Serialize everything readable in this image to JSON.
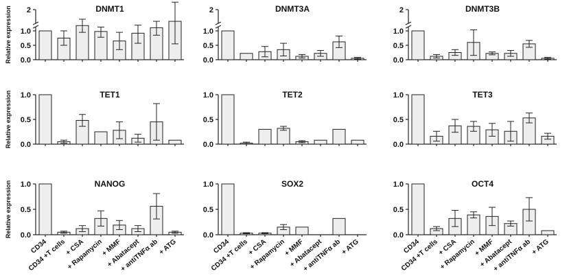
{
  "figure": {
    "ylabel": "Relative expression",
    "categories": [
      "CD34",
      "CD34 +T cells",
      "+ CSA",
      "+ Rapamycin",
      "+ MMF",
      "+ Abatacept",
      "+ antiTNFα ab",
      "+ ATG"
    ]
  },
  "chart_data": [
    {
      "type": "bar",
      "title": "DNMT1",
      "ylabel": "Relative expression",
      "ylim": [
        0,
        2
      ],
      "broken_axis": true,
      "yticks": [
        "0.0",
        "0.5",
        "1.0",
        "2"
      ],
      "values": [
        1.0,
        0.75,
        1.25,
        0.98,
        0.65,
        0.92,
        1.15,
        1.45
      ],
      "errors": [
        0,
        0.25,
        0.3,
        0.2,
        0.3,
        0.35,
        0.3,
        0.9
      ]
    },
    {
      "type": "bar",
      "title": "DNMT3A",
      "ylabel": "",
      "ylim": [
        0,
        2
      ],
      "broken_axis": true,
      "yticks": [
        "0.0",
        "0.5",
        "1.0",
        "2"
      ],
      "values": [
        1.0,
        0.22,
        0.28,
        0.35,
        0.12,
        0.22,
        0.62,
        0.05
      ],
      "errors": [
        0,
        0,
        0.18,
        0.22,
        0.06,
        0.1,
        0.2,
        0.03
      ]
    },
    {
      "type": "bar",
      "title": "DNMT3B",
      "ylabel": "",
      "ylim": [
        0,
        2
      ],
      "broken_axis": true,
      "yticks": [
        "0.0",
        "0.5",
        "1.0",
        "2"
      ],
      "values": [
        1.0,
        0.12,
        0.25,
        0.6,
        0.22,
        0.22,
        0.55,
        0.05
      ],
      "errors": [
        0,
        0.06,
        0.1,
        0.45,
        0.05,
        0.1,
        0.12,
        0.03
      ]
    },
    {
      "type": "bar",
      "title": "TET1",
      "ylabel": "Relative expression",
      "ylim": [
        0,
        1.0
      ],
      "yticks": [
        "0.0",
        "0.5",
        "1.0"
      ],
      "values": [
        1.0,
        0.05,
        0.48,
        0.25,
        0.28,
        0.12,
        0.45,
        0.08
      ],
      "errors": [
        0,
        0.03,
        0.12,
        0,
        0.17,
        0.08,
        0.37,
        0
      ]
    },
    {
      "type": "bar",
      "title": "TET2",
      "ylabel": "",
      "ylim": [
        0,
        1.0
      ],
      "yticks": [
        "0.0",
        "0.5",
        "1.0"
      ],
      "values": [
        1.0,
        0.02,
        0.3,
        0.32,
        0.05,
        0.08,
        0.3,
        0.08
      ],
      "errors": [
        0,
        0.02,
        0,
        0.04,
        0.02,
        0,
        0,
        0
      ]
    },
    {
      "type": "bar",
      "title": "TET3",
      "ylabel": "",
      "ylim": [
        0,
        1.0
      ],
      "yticks": [
        "0.0",
        "0.5",
        "1.0"
      ],
      "values": [
        1.0,
        0.16,
        0.37,
        0.36,
        0.29,
        0.26,
        0.53,
        0.16
      ],
      "errors": [
        0,
        0.1,
        0.13,
        0.1,
        0.13,
        0.2,
        0.1,
        0.06
      ]
    },
    {
      "type": "bar",
      "title": "NANOG",
      "ylabel": "Relative expression",
      "ylim": [
        0,
        1.0
      ],
      "yticks": [
        "0.0",
        "0.5",
        "1.0"
      ],
      "values": [
        1.0,
        0.05,
        0.12,
        0.32,
        0.19,
        0.12,
        0.56,
        0.05
      ],
      "errors": [
        0,
        0.02,
        0.06,
        0.15,
        0.09,
        0.06,
        0.25,
        0.02
      ]
    },
    {
      "type": "bar",
      "title": "SOX2",
      "ylabel": "",
      "ylim": [
        0,
        1.0
      ],
      "yticks": [
        "0.0",
        "0.5",
        "1.0"
      ],
      "values": [
        1.0,
        0.03,
        0.03,
        0.15,
        0.15,
        0.0,
        0.32,
        0.0
      ],
      "errors": [
        0,
        0.01,
        0.01,
        0.05,
        0,
        0,
        0,
        0
      ]
    },
    {
      "type": "bar",
      "title": "OCT4",
      "ylabel": "",
      "ylim": [
        0,
        1.0
      ],
      "yticks": [
        "0.0",
        "0.5",
        "1.0"
      ],
      "values": [
        1.0,
        0.12,
        0.32,
        0.39,
        0.36,
        0.22,
        0.5,
        0.08
      ],
      "errors": [
        0,
        0.04,
        0.16,
        0.06,
        0.18,
        0.05,
        0.23,
        0
      ]
    }
  ]
}
